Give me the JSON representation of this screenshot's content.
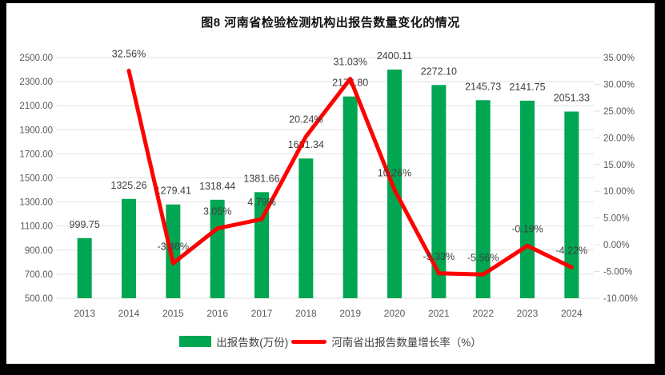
{
  "title": "图8  河南省检验检测机构出报告数量变化的情况",
  "chart_data": {
    "type": "bar+line",
    "title": "图8  河南省检验检测机构出报告数量变化的情况",
    "categories": [
      "2013",
      "2014",
      "2015",
      "2016",
      "2017",
      "2018",
      "2019",
      "2020",
      "2021",
      "2022",
      "2023",
      "2024"
    ],
    "series": [
      {
        "name": "出报告数(万份)",
        "type": "bar",
        "axis": "left",
        "color": "#00A651",
        "values": [
          999.75,
          1325.26,
          1279.41,
          1318.44,
          1381.66,
          1661.34,
          2176.8,
          2400.11,
          2272.1,
          2145.73,
          2141.75,
          2051.33
        ],
        "labels": [
          "999.75",
          "1325.26",
          "1279.41",
          "1318.44",
          "1381.66",
          "1661.34",
          "2176.80",
          "2400.11",
          "2272.10",
          "2145.73",
          "2141.75",
          "2051.33"
        ]
      },
      {
        "name": "河南省出报告数量增长率（%）",
        "type": "line",
        "axis": "right",
        "color": "#FE0000",
        "values": [
          null,
          32.56,
          -3.46,
          3.05,
          4.79,
          20.24,
          31.03,
          10.26,
          -5.33,
          -5.56,
          -0.19,
          -4.22
        ],
        "labels": [
          null,
          "32.56%",
          "-3.46%",
          "3.05%",
          "4.79%",
          "20.24%",
          "31.03%",
          "10.26%",
          "-5.33%",
          "-5.56%",
          "-0.19%",
          "-4.22%"
        ]
      }
    ],
    "left_axis": {
      "min": 500,
      "max": 2500,
      "step": 200,
      "ticks": [
        "2500.00",
        "2300.00",
        "2100.00",
        "1900.00",
        "1700.00",
        "1500.00",
        "1300.00",
        "1100.00",
        "900.00",
        "700.00",
        "500.00"
      ]
    },
    "right_axis": {
      "min": -10,
      "max": 35,
      "step": 5,
      "ticks": [
        "35.00%",
        "30.00%",
        "25.00%",
        "20.00%",
        "15.00%",
        "10.00%",
        "5.00%",
        "0.00%",
        "-5.00%",
        "-10.00%"
      ]
    },
    "grid": true,
    "legend_position": "bottom"
  },
  "colors": {
    "bar": "#00A651",
    "line": "#FE0000",
    "grid": "#E1E1E1",
    "axis_text": "#595959",
    "label_text": "#404040",
    "frame": "#000000",
    "background": "#FFFFFF"
  }
}
